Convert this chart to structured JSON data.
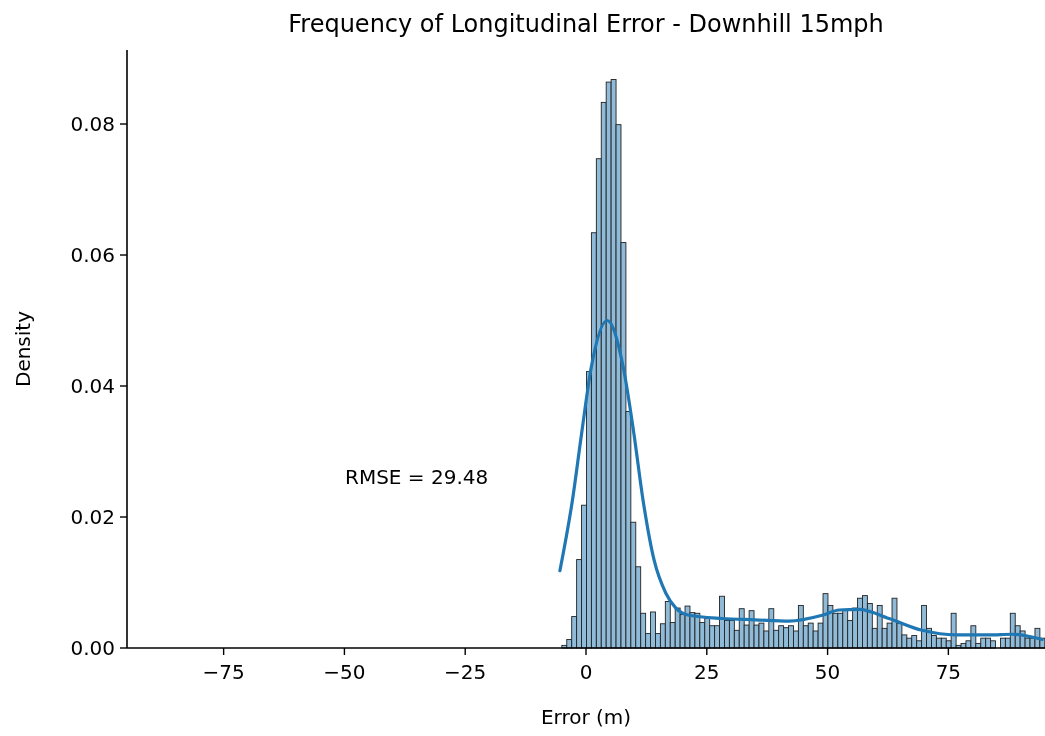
{
  "chart_data": {
    "type": "histogram",
    "title": "Frequency of Longitudinal Error - Downhill 15mph",
    "xlabel": "Error (m)",
    "ylabel": "Density",
    "annotations": [
      "RMSE = 29.48"
    ],
    "xlim": [
      -95,
      95
    ],
    "ylim": [
      0,
      0.0913
    ],
    "xticks": [
      {
        "value": -75,
        "label": "−75"
      },
      {
        "value": -50,
        "label": "−50"
      },
      {
        "value": -25,
        "label": "−25"
      },
      0,
      25,
      50,
      75
    ],
    "yticks": [
      {
        "value": 0,
        "label": "0.00"
      },
      {
        "value": 0.02,
        "label": "0.02"
      },
      {
        "value": 0.04,
        "label": "0.04"
      },
      {
        "value": 0.06,
        "label": "0.06"
      },
      {
        "value": 0.08,
        "label": "0.08"
      }
    ],
    "series": [
      {
        "color": "#8fbbd9",
        "bins": [
          -5,
          -3.98,
          -2.96,
          -1.94,
          -0.92,
          0.1,
          1.12,
          2.14,
          3.16,
          4.18,
          5.2,
          6.22,
          7.24,
          8.26,
          9.28,
          10.3,
          11.32,
          12.34,
          13.36,
          14.38,
          15.4,
          16.42,
          17.44,
          18.46,
          19.48,
          20.5,
          21.52,
          22.54,
          23.56,
          24.58,
          25.6,
          26.62,
          27.64,
          28.66,
          29.68,
          30.7,
          31.72,
          32.74,
          33.76,
          34.78,
          35.8,
          36.82,
          37.84,
          38.86,
          39.88,
          40.9,
          41.92,
          42.94,
          43.96,
          44.98,
          46,
          47.02,
          48.04,
          49.06,
          50.08,
          51.1,
          52.12,
          53.14,
          54.16,
          55.18,
          56.2,
          57.22,
          58.24,
          59.26,
          60.28,
          61.3,
          62.32,
          63.34,
          64.36,
          65.38,
          66.4,
          67.42,
          68.44,
          69.46,
          70.48,
          71.5,
          72.52,
          73.54,
          74.56,
          75.58,
          76.6,
          77.62,
          78.64,
          79.66,
          80.68,
          81.7,
          82.72,
          83.74,
          84.76,
          85.78,
          86.8,
          87.82,
          88.84,
          89.86,
          90.88,
          91.9,
          92.92,
          93.94,
          94.96
        ],
        "values": [
          0.0004,
          0.0013,
          0.0048,
          0.0135,
          0.0218,
          0.0422,
          0.0634,
          0.0747,
          0.0833,
          0.0864,
          0.0868,
          0.0799,
          0.0619,
          0.0361,
          0.0192,
          0.0124,
          0.0053,
          0.0022,
          0.0055,
          0.0022,
          0.0037,
          0.0071,
          0.0039,
          0.0061,
          0.0051,
          0.0064,
          0.0054,
          0.0053,
          0.0039,
          0.0045,
          0.0034,
          0.0034,
          0.0079,
          0.0042,
          0.0042,
          0.0027,
          0.006,
          0.0035,
          0.0057,
          0.0035,
          0.0038,
          0.0026,
          0.006,
          0.0027,
          0.0034,
          0.0031,
          0.0034,
          0.0026,
          0.0065,
          0.0034,
          0.0038,
          0.0026,
          0.0038,
          0.0083,
          0.0065,
          0.0053,
          0.0053,
          0.0058,
          0.0042,
          0.0061,
          0.0076,
          0.008,
          0.0068,
          0.003,
          0.0065,
          0.003,
          0.0038,
          0.0076,
          0.0038,
          0.002,
          0.0015,
          0.0019,
          0.0011,
          0.0065,
          0.003,
          0.0019,
          0.0015,
          0.0015,
          0.0011,
          0.0053,
          0.0004,
          0.0007,
          0.0011,
          0.0034,
          0.0007,
          0.0015,
          0.0015,
          0.0011,
          0,
          0.0015,
          0.0015,
          0.0053,
          0.0034,
          0.0026,
          0.0015,
          0.0015,
          0.003,
          0.0015
        ]
      },
      {
        "type": "line",
        "color": "#1f77b4",
        "x": [
          -5.4,
          -2.8,
          -0.9,
          1.1,
          4.4,
          7.7,
          9.9,
          11.8,
          14.1,
          16.5,
          18.6,
          21.3,
          28.2,
          35.1,
          42,
          48.9,
          52.4,
          56.5,
          62.7,
          69.6,
          76.5,
          83.4,
          88.2,
          94.4
        ],
        "values": [
          0.0118,
          0.0226,
          0.0328,
          0.0429,
          0.05,
          0.0429,
          0.0328,
          0.0226,
          0.0134,
          0.0084,
          0.0061,
          0.005,
          0.0045,
          0.0043,
          0.0041,
          0.005,
          0.0058,
          0.0059,
          0.0045,
          0.0027,
          0.002,
          0.002,
          0.0021,
          0.0013
        ]
      }
    ]
  }
}
